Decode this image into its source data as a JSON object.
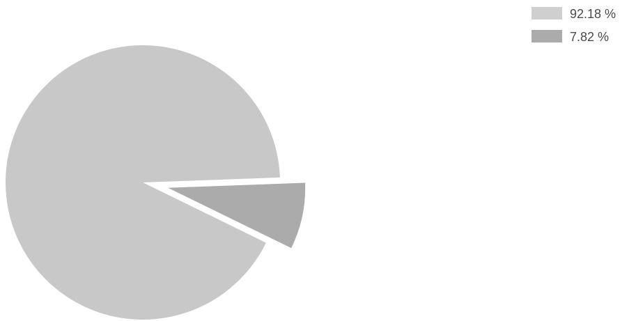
{
  "chart_data": {
    "type": "pie",
    "title": "",
    "categories": [
      "92.18 %",
      "7.82 %"
    ],
    "values": [
      92.18,
      7.82
    ],
    "unit": "%",
    "legend_position": "top-right",
    "exploded_slice_index": 1,
    "colors": [
      "#c8c8c8",
      "#ababab"
    ]
  }
}
